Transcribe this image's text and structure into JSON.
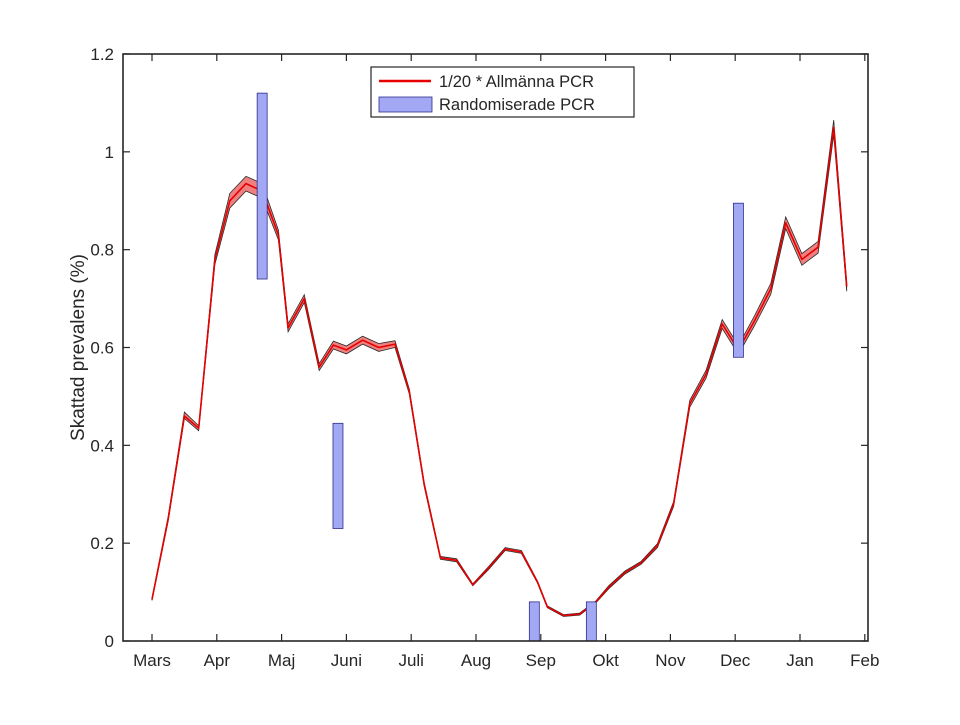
{
  "chart_data": {
    "type": "line",
    "ylabel": "Skattad prevalens (%)",
    "xlabel": "",
    "xlim": [
      0,
      11.4
    ],
    "ylim": [
      0,
      1.2
    ],
    "x_ticks": [
      {
        "pos": 0,
        "label": "Mars"
      },
      {
        "pos": 1,
        "label": "Apr"
      },
      {
        "pos": 2,
        "label": "Maj"
      },
      {
        "pos": 3,
        "label": "Juni"
      },
      {
        "pos": 4,
        "label": "Juli"
      },
      {
        "pos": 5,
        "label": "Aug"
      },
      {
        "pos": 6,
        "label": "Sep"
      },
      {
        "pos": 7,
        "label": "Okt"
      },
      {
        "pos": 8,
        "label": "Nov"
      },
      {
        "pos": 9,
        "label": "Dec"
      },
      {
        "pos": 10,
        "label": "Jan"
      },
      {
        "pos": 11,
        "label": "Feb"
      }
    ],
    "y_ticks": [
      {
        "value": 0,
        "label": "0"
      },
      {
        "value": 0.2,
        "label": "0.2"
      },
      {
        "value": 0.4,
        "label": "0.4"
      },
      {
        "value": 0.6,
        "label": "0.6"
      },
      {
        "value": 0.8,
        "label": "0.8"
      },
      {
        "value": 1.0,
        "label": "1"
      },
      {
        "value": 1.2,
        "label": "1.2"
      }
    ],
    "grid": false,
    "legend": {
      "placement": "top-center",
      "entries": [
        {
          "label": "1/20 * Allmänna PCR",
          "type": "line",
          "color": "#e60000"
        },
        {
          "label": "Randomiserade PCR",
          "type": "box",
          "color": "#a3a8f5"
        }
      ]
    },
    "series": [
      {
        "name": "1/20 * Allmänna PCR",
        "type": "line-with-band",
        "color": "#e60000",
        "band_color": "#f08080",
        "points": [
          {
            "x": 0.0,
            "y": 0.085,
            "lo": 0.083,
            "hi": 0.088
          },
          {
            "x": 0.25,
            "y": 0.25,
            "lo": 0.245,
            "hi": 0.255
          },
          {
            "x": 0.5,
            "y": 0.46,
            "lo": 0.455,
            "hi": 0.468
          },
          {
            "x": 0.72,
            "y": 0.435,
            "lo": 0.43,
            "hi": 0.44
          },
          {
            "x": 0.97,
            "y": 0.78,
            "lo": 0.77,
            "hi": 0.79
          },
          {
            "x": 1.2,
            "y": 0.9,
            "lo": 0.885,
            "hi": 0.915
          },
          {
            "x": 1.45,
            "y": 0.935,
            "lo": 0.92,
            "hi": 0.95
          },
          {
            "x": 1.7,
            "y": 0.92,
            "lo": 0.905,
            "hi": 0.935
          },
          {
            "x": 1.95,
            "y": 0.83,
            "lo": 0.82,
            "hi": 0.84
          },
          {
            "x": 2.1,
            "y": 0.64,
            "lo": 0.632,
            "hi": 0.648
          },
          {
            "x": 2.35,
            "y": 0.7,
            "lo": 0.692,
            "hi": 0.708
          },
          {
            "x": 2.58,
            "y": 0.56,
            "lo": 0.553,
            "hi": 0.567
          },
          {
            "x": 2.8,
            "y": 0.605,
            "lo": 0.597,
            "hi": 0.613
          },
          {
            "x": 3.0,
            "y": 0.595,
            "lo": 0.587,
            "hi": 0.603
          },
          {
            "x": 3.25,
            "y": 0.615,
            "lo": 0.607,
            "hi": 0.623
          },
          {
            "x": 3.5,
            "y": 0.6,
            "lo": 0.592,
            "hi": 0.608
          },
          {
            "x": 3.75,
            "y": 0.607,
            "lo": 0.6,
            "hi": 0.614
          },
          {
            "x": 3.97,
            "y": 0.51,
            "lo": 0.505,
            "hi": 0.515
          },
          {
            "x": 4.2,
            "y": 0.32,
            "lo": 0.316,
            "hi": 0.324
          },
          {
            "x": 4.45,
            "y": 0.17,
            "lo": 0.167,
            "hi": 0.173
          },
          {
            "x": 4.7,
            "y": 0.165,
            "lo": 0.162,
            "hi": 0.168
          },
          {
            "x": 4.95,
            "y": 0.115,
            "lo": 0.113,
            "hi": 0.117
          },
          {
            "x": 5.2,
            "y": 0.15,
            "lo": 0.147,
            "hi": 0.153
          },
          {
            "x": 5.45,
            "y": 0.188,
            "lo": 0.185,
            "hi": 0.191
          },
          {
            "x": 5.7,
            "y": 0.182,
            "lo": 0.179,
            "hi": 0.185
          },
          {
            "x": 5.95,
            "y": 0.12,
            "lo": 0.118,
            "hi": 0.122
          },
          {
            "x": 6.1,
            "y": 0.07,
            "lo": 0.068,
            "hi": 0.072
          },
          {
            "x": 6.35,
            "y": 0.052,
            "lo": 0.05,
            "hi": 0.054
          },
          {
            "x": 6.6,
            "y": 0.055,
            "lo": 0.053,
            "hi": 0.057
          },
          {
            "x": 6.85,
            "y": 0.08,
            "lo": 0.078,
            "hi": 0.082
          },
          {
            "x": 7.05,
            "y": 0.11,
            "lo": 0.107,
            "hi": 0.113
          },
          {
            "x": 7.3,
            "y": 0.14,
            "lo": 0.137,
            "hi": 0.143
          },
          {
            "x": 7.55,
            "y": 0.16,
            "lo": 0.157,
            "hi": 0.163
          },
          {
            "x": 7.8,
            "y": 0.195,
            "lo": 0.191,
            "hi": 0.199
          },
          {
            "x": 8.05,
            "y": 0.28,
            "lo": 0.275,
            "hi": 0.285
          },
          {
            "x": 8.3,
            "y": 0.485,
            "lo": 0.478,
            "hi": 0.492
          },
          {
            "x": 8.55,
            "y": 0.545,
            "lo": 0.537,
            "hi": 0.553
          },
          {
            "x": 8.8,
            "y": 0.648,
            "lo": 0.639,
            "hi": 0.657
          },
          {
            "x": 9.05,
            "y": 0.595,
            "lo": 0.586,
            "hi": 0.604
          },
          {
            "x": 9.3,
            "y": 0.655,
            "lo": 0.645,
            "hi": 0.665
          },
          {
            "x": 9.55,
            "y": 0.72,
            "lo": 0.709,
            "hi": 0.731
          },
          {
            "x": 9.78,
            "y": 0.855,
            "lo": 0.843,
            "hi": 0.867
          },
          {
            "x": 10.03,
            "y": 0.78,
            "lo": 0.768,
            "hi": 0.792
          },
          {
            "x": 10.28,
            "y": 0.805,
            "lo": 0.793,
            "hi": 0.817
          },
          {
            "x": 10.52,
            "y": 1.05,
            "lo": 1.035,
            "hi": 1.065
          },
          {
            "x": 10.72,
            "y": 0.725,
            "lo": 0.715,
            "hi": 0.735
          }
        ]
      },
      {
        "name": "Randomiserade PCR",
        "type": "interval-bars",
        "color": "#a3a8f5",
        "edge_color": "#2d2d8a",
        "intervals": [
          {
            "x": 1.7,
            "lo": 0.74,
            "hi": 1.12
          },
          {
            "x": 2.87,
            "lo": 0.23,
            "hi": 0.445
          },
          {
            "x": 5.9,
            "lo": 0.0,
            "hi": 0.08
          },
          {
            "x": 6.78,
            "lo": 0.0,
            "hi": 0.08
          },
          {
            "x": 9.05,
            "lo": 0.58,
            "hi": 0.895
          }
        ]
      }
    ]
  }
}
